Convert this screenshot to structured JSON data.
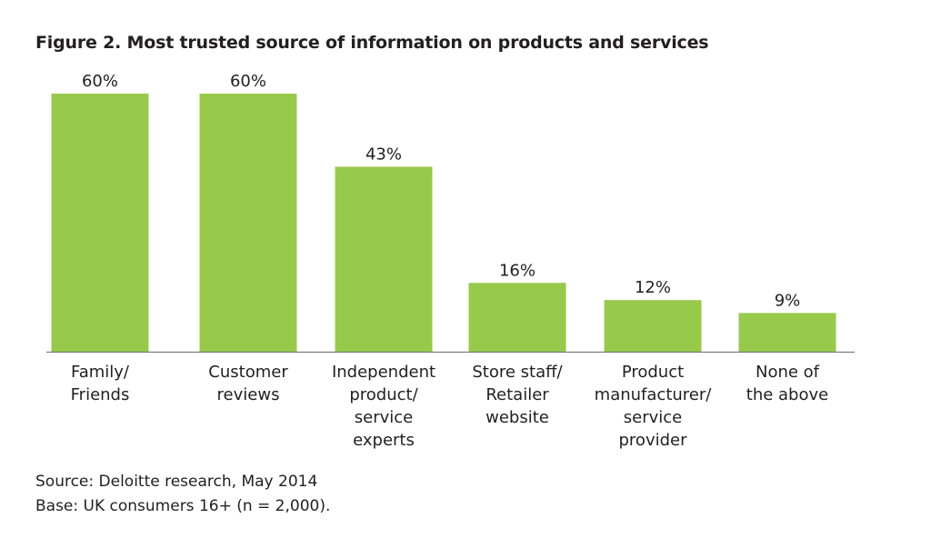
{
  "chart_data": {
    "type": "bar",
    "title": "Figure 2. Most trusted source of information on products and services",
    "categories": [
      [
        "Family/",
        "Friends"
      ],
      [
        "Customer",
        "reviews"
      ],
      [
        "Independent",
        "product/",
        "service",
        "experts"
      ],
      [
        "Store staff/",
        "Retailer",
        "website"
      ],
      [
        "Product",
        "manufacturer/",
        "service",
        "provider"
      ],
      [
        "None of",
        "the above"
      ]
    ],
    "values": [
      60,
      60,
      43,
      16,
      12,
      9
    ],
    "value_labels": [
      "60%",
      "60%",
      "43%",
      "16%",
      "12%",
      "9%"
    ],
    "ylim": [
      0,
      60
    ],
    "grid": false,
    "bar_color": "#97c94b",
    "axis_color": "#7a7a7a"
  },
  "footnotes": {
    "source": "Source: Deloitte research, May 2014",
    "base": "Base: UK consumers 16+ (n = 2,000)."
  }
}
